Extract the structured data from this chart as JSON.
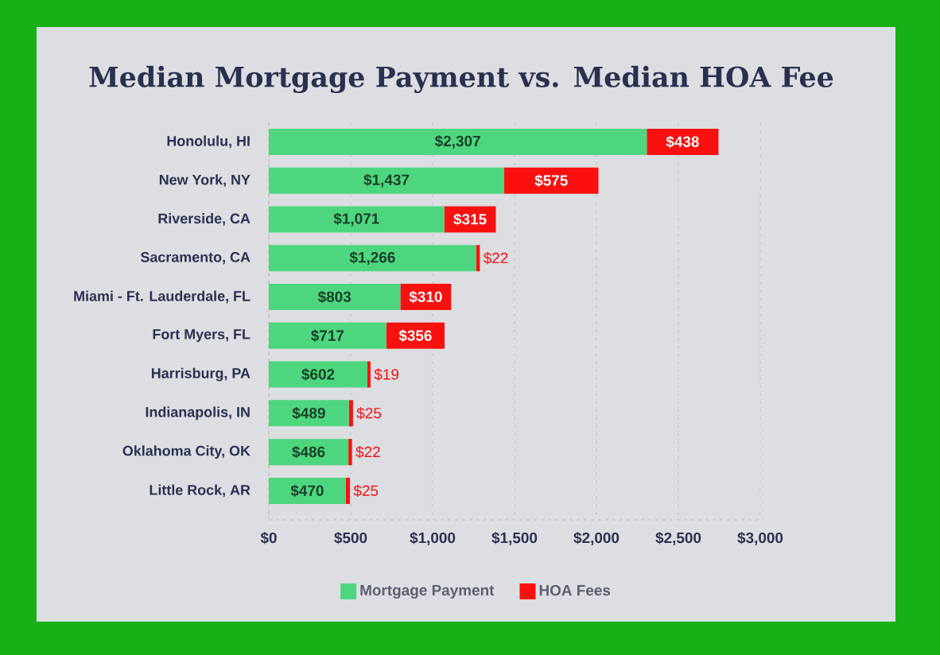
{
  "chart_data": {
    "type": "bar",
    "orientation": "horizontal",
    "stacked": true,
    "title": "Median Mortgage Payment vs. Median HOA Fee",
    "categories": [
      "Honolulu, HI",
      "New York, NY",
      "Riverside, CA",
      "Sacramento, CA",
      "Miami - Ft. Lauderdale, FL",
      "Fort Myers, FL",
      "Harrisburg, PA",
      "Indianapolis, IN",
      "Oklahoma City, OK",
      "Little Rock, AR"
    ],
    "series": [
      {
        "name": "Mortgage Payment",
        "color": "#4dd67e",
        "values": [
          2307,
          1437,
          1071,
          1266,
          803,
          717,
          602,
          489,
          486,
          470
        ],
        "value_labels": [
          "$2,307",
          "$1,437",
          "$1,071",
          "$1,266",
          "$803",
          "$717",
          "$602",
          "$489",
          "$486",
          "$470"
        ]
      },
      {
        "name": "HOA Fees",
        "color": "#fb1010",
        "values": [
          438,
          575,
          315,
          22,
          310,
          356,
          19,
          25,
          22,
          25
        ],
        "value_labels": [
          "$438",
          "$575",
          "$315",
          "$22",
          "$310",
          "$356",
          "$19",
          "$25",
          "$22",
          "$25"
        ]
      }
    ],
    "xlim": [
      0,
      3000
    ],
    "xticks": [
      {
        "value": 0,
        "label": "$0"
      },
      {
        "value": 500,
        "label": "$500"
      },
      {
        "value": 1000,
        "label": "$1,000"
      },
      {
        "value": 1500,
        "label": "$1,500"
      },
      {
        "value": 2000,
        "label": "$2,000"
      },
      {
        "value": 2500,
        "label": "$2,500"
      },
      {
        "value": 3000,
        "label": "$3,000"
      }
    ],
    "grid": "x",
    "legend": "bottom"
  }
}
